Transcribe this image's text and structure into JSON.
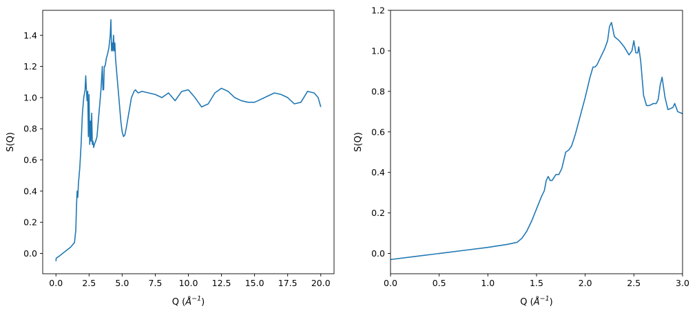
{
  "style": {
    "line_color": "#1f77b4",
    "axes_color": "#000000",
    "background": "#ffffff"
  },
  "chart_data": [
    {
      "type": "line",
      "xlabel_base": "Q (",
      "xlabel_unit": "Å",
      "xlabel_exp": "−1",
      "xlabel_end": ")",
      "ylabel": "S(Q)",
      "xlim": [
        -1.0,
        21.0
      ],
      "ylim": [
        -0.13,
        1.56
      ],
      "xticks": [
        0.0,
        2.5,
        5.0,
        7.5,
        10.0,
        12.5,
        15.0,
        17.5,
        20.0
      ],
      "xtick_labels": [
        "0.0",
        "2.5",
        "5.0",
        "7.5",
        "10.0",
        "12.5",
        "15.0",
        "17.5",
        "20.0"
      ],
      "yticks": [
        0.0,
        0.2,
        0.4,
        0.6,
        0.8,
        1.0,
        1.2,
        1.4
      ],
      "ytick_labels": [
        "0.0",
        "0.2",
        "0.4",
        "0.6",
        "0.8",
        "1.0",
        "1.2",
        "1.4"
      ],
      "grid": false,
      "series": [
        {
          "x": [
            0.0,
            0.02,
            0.2,
            0.5,
            0.8,
            1.1,
            1.4,
            1.5,
            1.55,
            1.6,
            1.65,
            1.7,
            1.8,
            1.9,
            2.0,
            2.1,
            2.2,
            2.25,
            2.3,
            2.35,
            2.4,
            2.45,
            2.5,
            2.55,
            2.6,
            2.65,
            2.7,
            2.75,
            2.8,
            2.85,
            2.9,
            3.0,
            3.1,
            3.2,
            3.3,
            3.4,
            3.5,
            3.55,
            3.6,
            3.65,
            3.7,
            3.75,
            3.8,
            3.9,
            4.0,
            4.1,
            4.15,
            4.2,
            4.25,
            4.3,
            4.35,
            4.4,
            4.45,
            4.5,
            4.6,
            4.7,
            4.8,
            4.9,
            5.0,
            5.1,
            5.2,
            5.3,
            5.4,
            5.5,
            5.6,
            5.7,
            5.8,
            5.9,
            6.0,
            6.2,
            6.5,
            7.0,
            7.5,
            8.0,
            8.5,
            9.0,
            9.5,
            10.0,
            10.5,
            11.0,
            11.5,
            12.0,
            12.5,
            13.0,
            13.5,
            14.0,
            14.5,
            15.0,
            15.5,
            16.0,
            16.5,
            17.0,
            17.5,
            18.0,
            18.5,
            19.0,
            19.5,
            19.8,
            20.0
          ],
          "y": [
            -0.05,
            -0.03,
            -0.02,
            0.0,
            0.02,
            0.04,
            0.07,
            0.15,
            0.3,
            0.4,
            0.36,
            0.45,
            0.55,
            0.7,
            0.9,
            1.0,
            1.05,
            1.14,
            1.05,
            0.98,
            1.04,
            0.75,
            1.02,
            0.7,
            0.85,
            0.72,
            0.9,
            0.7,
            0.72,
            0.68,
            0.7,
            0.72,
            0.75,
            0.85,
            0.95,
            1.05,
            1.2,
            1.05,
            1.05,
            1.2,
            1.2,
            1.22,
            1.25,
            1.28,
            1.32,
            1.4,
            1.5,
            1.3,
            1.35,
            1.3,
            1.4,
            1.3,
            1.35,
            1.25,
            1.15,
            1.05,
            0.95,
            0.85,
            0.78,
            0.75,
            0.76,
            0.8,
            0.85,
            0.9,
            0.95,
            1.0,
            1.02,
            1.04,
            1.05,
            1.03,
            1.04,
            1.03,
            1.02,
            1.0,
            1.03,
            0.98,
            1.04,
            1.05,
            1.0,
            0.94,
            0.96,
            1.03,
            1.06,
            1.04,
            1.0,
            0.98,
            0.97,
            0.97,
            0.99,
            1.01,
            1.03,
            1.02,
            1.0,
            0.96,
            0.97,
            1.04,
            1.03,
            1.0,
            0.94
          ]
        }
      ]
    },
    {
      "type": "line",
      "xlabel_base": "Q (",
      "xlabel_unit": "Å",
      "xlabel_exp": "−1",
      "xlabel_end": ")",
      "ylabel": "S(Q)",
      "xlim": [
        0.0,
        3.0
      ],
      "ylim": [
        -0.1,
        1.2
      ],
      "xticks": [
        0.0,
        0.5,
        1.0,
        1.5,
        2.0,
        2.5,
        3.0
      ],
      "xtick_labels": [
        "0.0",
        "0.5",
        "1.0",
        "1.5",
        "2.0",
        "2.5",
        "3.0"
      ],
      "yticks": [
        0.0,
        0.2,
        0.4,
        0.6,
        0.8,
        1.0,
        1.2
      ],
      "ytick_labels": [
        "0.0",
        "0.2",
        "0.4",
        "0.6",
        "0.8",
        "1.0",
        "1.2"
      ],
      "grid": false,
      "series": [
        {
          "x": [
            0.0,
            0.25,
            0.5,
            0.75,
            1.0,
            1.2,
            1.25,
            1.3,
            1.35,
            1.4,
            1.45,
            1.5,
            1.55,
            1.58,
            1.6,
            1.62,
            1.64,
            1.66,
            1.7,
            1.73,
            1.76,
            1.8,
            1.83,
            1.86,
            1.9,
            1.95,
            2.0,
            2.05,
            2.08,
            2.1,
            2.12,
            2.15,
            2.2,
            2.23,
            2.25,
            2.27,
            2.3,
            2.35,
            2.4,
            2.45,
            2.48,
            2.5,
            2.52,
            2.54,
            2.55,
            2.57,
            2.6,
            2.63,
            2.66,
            2.7,
            2.73,
            2.75,
            2.77,
            2.79,
            2.82,
            2.85,
            2.9,
            2.92,
            2.95,
            3.0
          ],
          "y": [
            -0.03,
            -0.015,
            0.0,
            0.015,
            0.03,
            0.045,
            0.05,
            0.055,
            0.075,
            0.11,
            0.16,
            0.22,
            0.28,
            0.31,
            0.36,
            0.38,
            0.36,
            0.36,
            0.39,
            0.39,
            0.42,
            0.5,
            0.51,
            0.53,
            0.59,
            0.68,
            0.77,
            0.87,
            0.92,
            0.92,
            0.93,
            0.96,
            1.01,
            1.05,
            1.12,
            1.14,
            1.07,
            1.05,
            1.02,
            0.98,
            1.0,
            1.05,
            0.99,
            0.99,
            1.02,
            0.95,
            0.78,
            0.73,
            0.73,
            0.74,
            0.74,
            0.76,
            0.83,
            0.87,
            0.77,
            0.71,
            0.72,
            0.74,
            0.7,
            0.69
          ]
        }
      ]
    }
  ]
}
